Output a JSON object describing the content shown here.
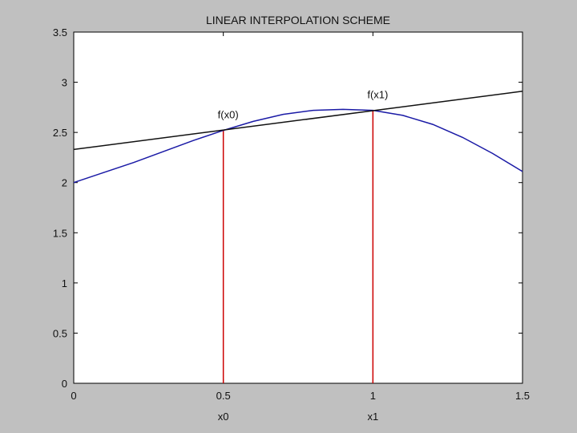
{
  "chart_data": {
    "type": "line",
    "title": "LINEAR INTERPOLATION SCHEME",
    "xlim": [
      0,
      1.5
    ],
    "ylim": [
      0,
      3.5
    ],
    "xticks": [
      0,
      0.5,
      1,
      1.5
    ],
    "xtick_labels": [
      "0",
      "0.5",
      "1",
      "1.5"
    ],
    "yticks": [
      0,
      0.5,
      1,
      1.5,
      2,
      2.5,
      3,
      3.5
    ],
    "ytick_labels": [
      "0",
      "0.5",
      "1",
      "1.5",
      "2",
      "2.5",
      "3",
      "3.5"
    ],
    "x_sub_labels": [
      {
        "x": 0.5,
        "label": "x0"
      },
      {
        "x": 1.0,
        "label": "x1"
      }
    ],
    "grid": false,
    "series": [
      {
        "color": "#1a1aa6",
        "x": [
          0,
          0.1,
          0.2,
          0.3,
          0.4,
          0.5,
          0.6,
          0.7,
          0.8,
          0.9,
          1.0,
          1.1,
          1.2,
          1.3,
          1.4,
          1.5
        ],
        "y": [
          2.0,
          2.1,
          2.2,
          2.31,
          2.42,
          2.52,
          2.61,
          2.68,
          2.72,
          2.73,
          2.72,
          2.67,
          2.58,
          2.45,
          2.29,
          2.11
        ]
      },
      {
        "color": "#111111",
        "x": [
          0,
          1.5
        ],
        "y": [
          2.33,
          2.91
        ]
      }
    ],
    "vertical_lines": [
      {
        "x": 0.5,
        "y_top": 2.52,
        "color": "#cc0000"
      },
      {
        "x": 1.0,
        "y_top": 2.72,
        "color": "#cc0000"
      }
    ],
    "annotations": [
      {
        "text": "f(x0)",
        "x": 0.5,
        "y": 2.52
      },
      {
        "text": "f(x1)",
        "x": 1.0,
        "y": 2.72
      }
    ]
  }
}
